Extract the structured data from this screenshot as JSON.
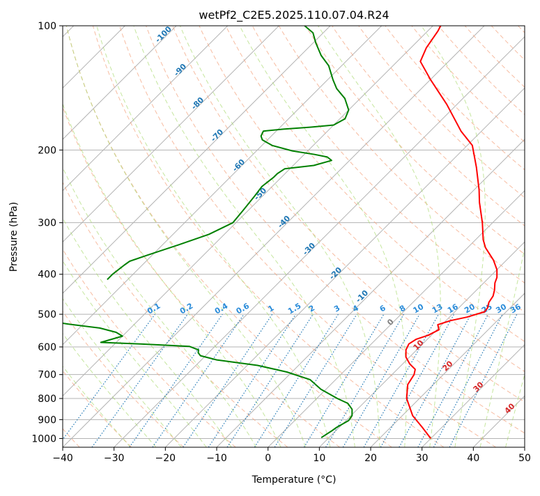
{
  "chart_data": {
    "type": "line",
    "subtype": "skew-T log-P diagram",
    "title": "wetPf2_C2E5.2025.110.07.04.R24",
    "xlabel": "Temperature (°C)",
    "ylabel": "Pressure (hPa)",
    "xlim": [
      -40,
      50
    ],
    "ylim": [
      1050,
      100
    ],
    "y_scale": "log",
    "grid": true,
    "x_ticks": [
      -40,
      -30,
      -20,
      -10,
      0,
      10,
      20,
      30,
      40,
      50
    ],
    "y_ticks": [
      100,
      200,
      300,
      400,
      500,
      600,
      700,
      800,
      900,
      1000
    ],
    "series": [
      {
        "role": "temperature",
        "color": "#ff0000",
        "points": [
          [
            30,
            1000
          ],
          [
            26.2,
            940
          ],
          [
            22,
            880
          ],
          [
            17.5,
            800
          ],
          [
            15,
            740
          ],
          [
            14.3,
            700
          ],
          [
            13.5,
            680
          ],
          [
            11.4,
            660
          ],
          [
            9.3,
            635
          ],
          [
            7.9,
            610
          ],
          [
            7.3,
            590
          ],
          [
            7.8,
            575
          ],
          [
            9.4,
            562
          ],
          [
            10.4,
            545
          ],
          [
            9.2,
            530
          ],
          [
            10.9,
            518
          ],
          [
            13.4,
            508
          ],
          [
            15.8,
            493
          ],
          [
            15.6,
            482
          ],
          [
            14.8,
            468
          ],
          [
            14.4,
            452
          ],
          [
            13.5,
            437
          ],
          [
            12.2,
            420
          ],
          [
            11.5,
            407
          ],
          [
            10,
            390
          ],
          [
            7.5,
            370
          ],
          [
            3.5,
            345
          ],
          [
            1.5,
            330
          ],
          [
            -2,
            300
          ],
          [
            -6.5,
            268
          ],
          [
            -9,
            250
          ],
          [
            -14,
            220
          ],
          [
            -19,
            195
          ],
          [
            -24,
            180
          ],
          [
            -32,
            155
          ],
          [
            -40,
            135
          ],
          [
            -45.5,
            122
          ],
          [
            -47,
            113
          ],
          [
            -48,
            103
          ],
          [
            -48.5,
            100
          ]
        ]
      },
      {
        "role": "dewpoint",
        "color": "#008000",
        "points": [
          [
            8.5,
            995
          ],
          [
            9.2,
            960
          ],
          [
            9.5,
            940
          ],
          [
            10.5,
            905
          ],
          [
            10.2,
            880
          ],
          [
            9,
            850
          ],
          [
            7,
            822
          ],
          [
            4,
            800
          ],
          [
            -1,
            760
          ],
          [
            -5,
            720
          ],
          [
            -11,
            690
          ],
          [
            -18,
            665
          ],
          [
            -27,
            645
          ],
          [
            -31,
            630
          ],
          [
            -32,
            620
          ],
          [
            -32.5,
            610
          ],
          [
            -35,
            598
          ],
          [
            -45,
            590
          ],
          [
            -53,
            585
          ],
          [
            -50,
            565
          ],
          [
            -52,
            553
          ],
          [
            -56,
            540
          ],
          [
            -63,
            528
          ],
          [
            -71,
            512
          ],
          [
            -75,
            501
          ],
          [
            -76,
            500
          ]
        ],
        "segments": [
          [
            [
              -64,
              412
            ],
            [
              -64,
              400
            ],
            [
              -63.5,
              380
            ],
            [
              -63.2,
              372
            ],
            [
              -61,
              360
            ],
            [
              -57,
              340
            ],
            [
              -53,
              320
            ],
            [
              -50.6,
              300
            ],
            [
              -51,
              280
            ],
            [
              -51.5,
              260
            ],
            [
              -52,
              245
            ],
            [
              -51.5,
              233
            ],
            [
              -51.5,
              228
            ],
            [
              -51,
              222
            ],
            [
              -46,
              218
            ],
            [
              -43.5,
              212
            ],
            [
              -45,
              208
            ],
            [
              -48,
              205
            ],
            [
              -53,
              201
            ],
            [
              -58,
              195
            ],
            [
              -61,
              189
            ],
            [
              -62,
              185
            ],
            [
              -62.5,
              180
            ],
            [
              -59,
              178
            ],
            [
              -54,
              176
            ],
            [
              -50,
              174
            ],
            [
              -49,
              168
            ],
            [
              -50,
              160
            ],
            [
              -53,
              150
            ],
            [
              -56.5,
              142
            ],
            [
              -59,
              135
            ],
            [
              -62.5,
              125
            ],
            [
              -66,
              118
            ],
            [
              -69.5,
              110
            ],
            [
              -72,
              104
            ],
            [
              -75,
              100
            ]
          ]
        ]
      }
    ],
    "annotations": {
      "dry_adiabat_labels": [
        "-100",
        "-90",
        "-80",
        "-70",
        "-60",
        "-50",
        "-40",
        "-30",
        "-20",
        "-10"
      ],
      "mixing_ratio_labels": [
        "0.1",
        "0.2",
        "0.4",
        "0.6",
        "1",
        "1.5",
        "2",
        "3",
        "4",
        "6",
        "8",
        "10",
        "13",
        "16",
        "20",
        "25",
        "30",
        "36"
      ],
      "moist_adiabat_labels": [
        "0",
        "10",
        "20",
        "30",
        "40"
      ]
    },
    "colors": {
      "isotherm": "#b3b3b3",
      "isobar": "#b3b3b3",
      "dry_adiabat": "#f4a582",
      "moist_adiabat": "#a6d96a",
      "mixing_ratio": "#1f77b4",
      "dry_adiabat_label": "#1f77b4",
      "mixing_ratio_label": "#2b8cd9",
      "moist_adiabat_label": "#d62728",
      "zero_label": "#808080"
    }
  }
}
